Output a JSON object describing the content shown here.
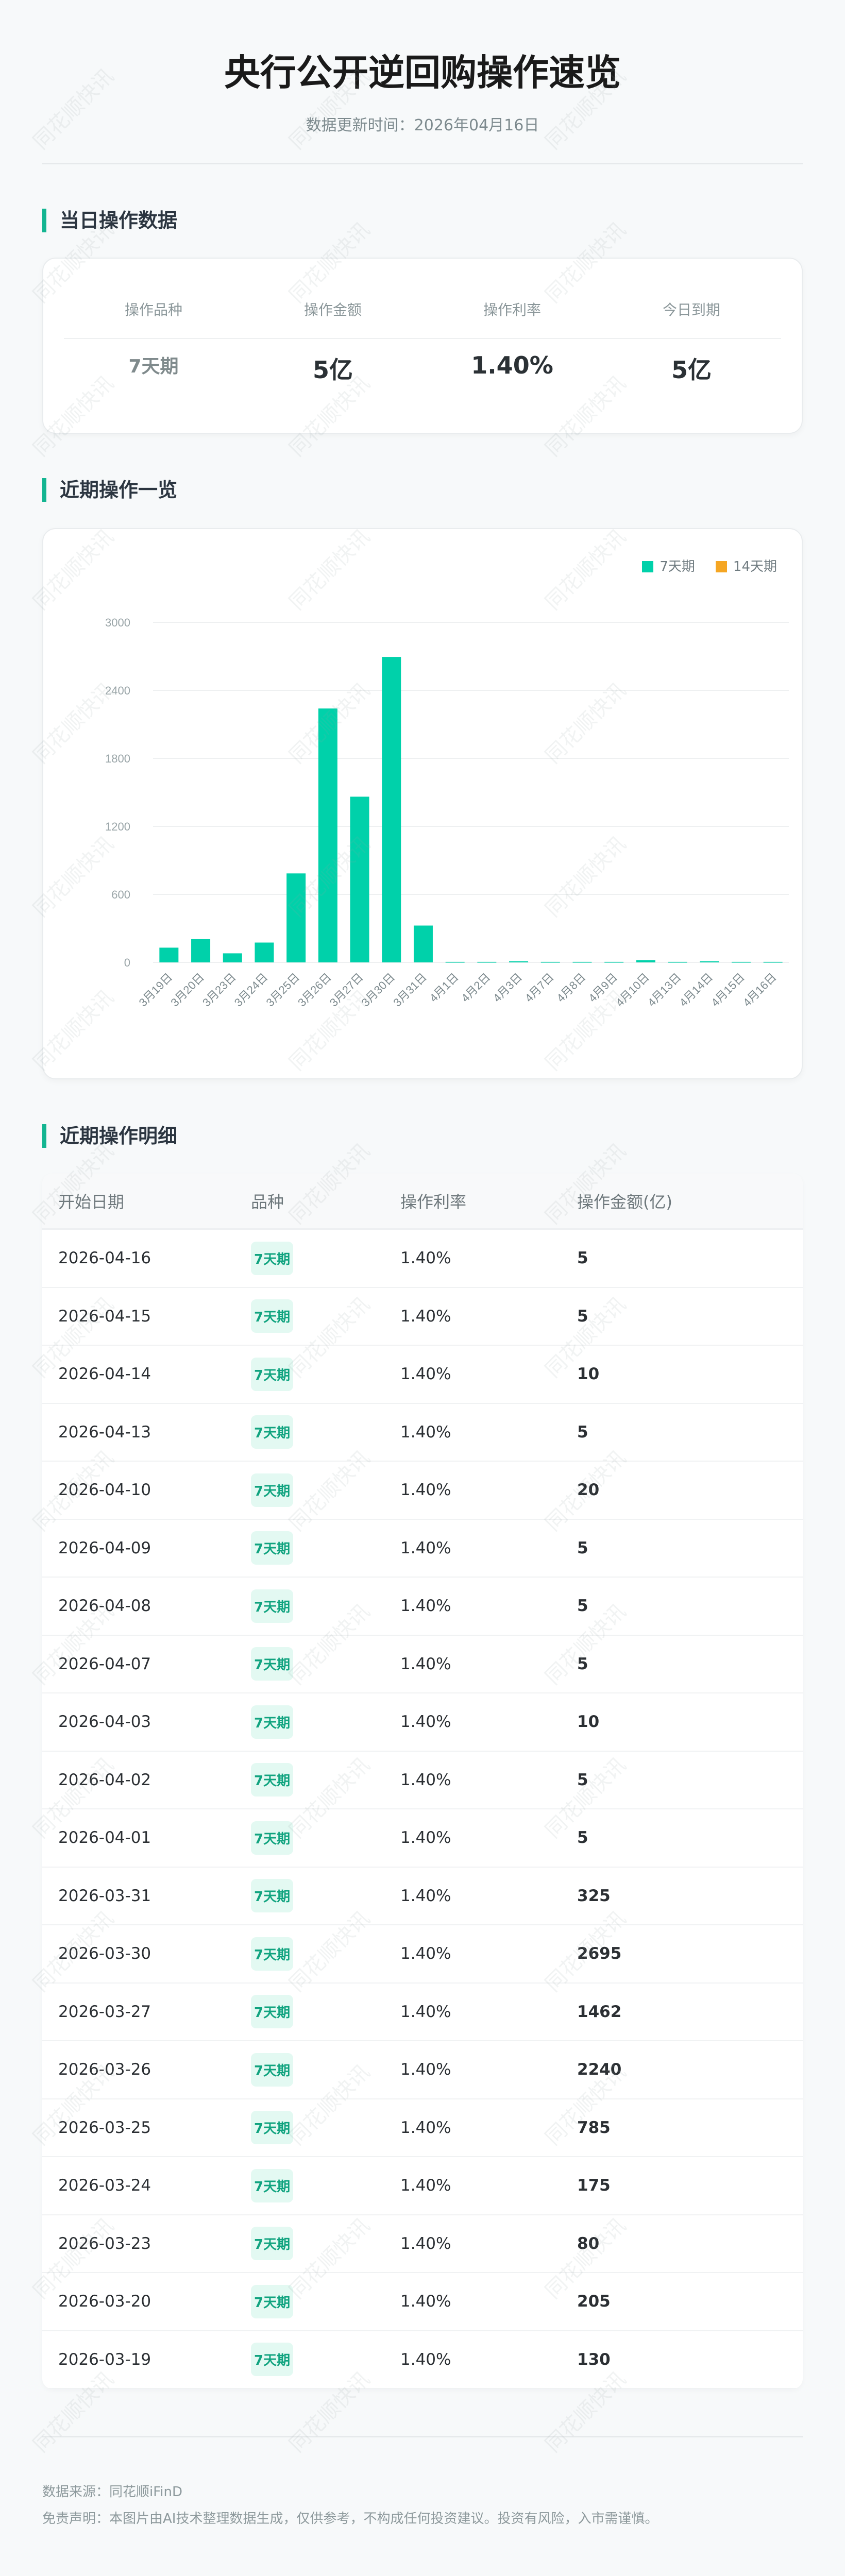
{
  "header": {
    "title": "央行公开逆回购操作速览",
    "update_time": "数据更新时间：2026年04月16日"
  },
  "watermark": "同花顺快讯",
  "today": {
    "section_title": "当日操作数据",
    "labels": [
      "操作品种",
      "操作金额",
      "操作利率",
      "今日到期"
    ],
    "values": [
      "7天期",
      "5亿",
      "1.40%",
      "5亿"
    ]
  },
  "recent": {
    "section_title": "近期操作一览"
  },
  "chart_data": {
    "type": "bar",
    "categories": [
      "3月19日",
      "3月20日",
      "3月23日",
      "3月24日",
      "3月25日",
      "3月26日",
      "3月27日",
      "3月30日",
      "3月31日",
      "4月1日",
      "4月2日",
      "4月3日",
      "4月7日",
      "4月8日",
      "4月9日",
      "4月10日",
      "4月13日",
      "4月14日",
      "4月15日",
      "4月16日"
    ],
    "series": [
      {
        "name": "7天期",
        "color": "#00d1aa",
        "values": [
          130,
          205,
          80,
          175,
          785,
          2240,
          1462,
          2695,
          325,
          5,
          5,
          10,
          5,
          5,
          5,
          20,
          5,
          10,
          5,
          5
        ]
      },
      {
        "name": "14天期",
        "color": "#f5a623",
        "values": [
          0,
          0,
          0,
          0,
          0,
          0,
          0,
          0,
          0,
          0,
          0,
          0,
          0,
          0,
          0,
          0,
          0,
          0,
          0,
          0
        ]
      }
    ],
    "yticks": [
      0,
      600,
      1200,
      1800,
      2400,
      3000
    ],
    "ylim": [
      0,
      3000
    ],
    "grid": true,
    "legend": "top-right"
  },
  "detail": {
    "section_title": "近期操作明细",
    "columns": [
      "开始日期",
      "品种",
      "操作利率",
      "操作金额(亿)"
    ],
    "rows": [
      [
        "2026-04-16",
        "7天期",
        "1.40%",
        "5"
      ],
      [
        "2026-04-15",
        "7天期",
        "1.40%",
        "5"
      ],
      [
        "2026-04-14",
        "7天期",
        "1.40%",
        "10"
      ],
      [
        "2026-04-13",
        "7天期",
        "1.40%",
        "5"
      ],
      [
        "2026-04-10",
        "7天期",
        "1.40%",
        "20"
      ],
      [
        "2026-04-09",
        "7天期",
        "1.40%",
        "5"
      ],
      [
        "2026-04-08",
        "7天期",
        "1.40%",
        "5"
      ],
      [
        "2026-04-07",
        "7天期",
        "1.40%",
        "5"
      ],
      [
        "2026-04-03",
        "7天期",
        "1.40%",
        "10"
      ],
      [
        "2026-04-02",
        "7天期",
        "1.40%",
        "5"
      ],
      [
        "2026-04-01",
        "7天期",
        "1.40%",
        "5"
      ],
      [
        "2026-03-31",
        "7天期",
        "1.40%",
        "325"
      ],
      [
        "2026-03-30",
        "7天期",
        "1.40%",
        "2695"
      ],
      [
        "2026-03-27",
        "7天期",
        "1.40%",
        "1462"
      ],
      [
        "2026-03-26",
        "7天期",
        "1.40%",
        "2240"
      ],
      [
        "2026-03-25",
        "7天期",
        "1.40%",
        "785"
      ],
      [
        "2026-03-24",
        "7天期",
        "1.40%",
        "175"
      ],
      [
        "2026-03-23",
        "7天期",
        "1.40%",
        "80"
      ],
      [
        "2026-03-20",
        "7天期",
        "1.40%",
        "205"
      ],
      [
        "2026-03-19",
        "7天期",
        "1.40%",
        "130"
      ]
    ]
  },
  "footer": {
    "source": "数据来源：同花顺iFinD",
    "disclaimer": "免责声明：本图片由AI技术整理数据生成，仅供参考，不构成任何投资建议。投资有风险，入市需谨慎。"
  }
}
